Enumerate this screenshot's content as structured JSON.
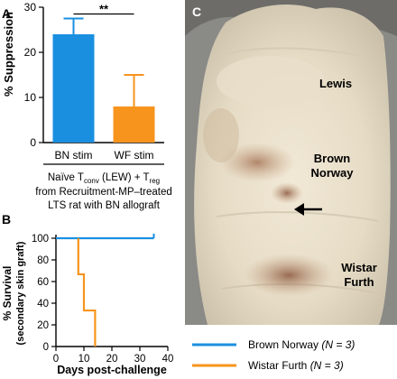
{
  "panels": {
    "a_letter": "A",
    "b_letter": "B",
    "c_letter": "C"
  },
  "chart_data": [
    {
      "type": "bar",
      "panel": "A",
      "ylabel": "% Suppression",
      "ylim": [
        0,
        30
      ],
      "yticks": [
        0,
        10,
        20,
        30
      ],
      "categories": [
        "BN stim",
        "WF stim"
      ],
      "values": [
        24,
        8
      ],
      "error_upper": [
        27.5,
        15
      ],
      "colors": [
        "#1a8fe0",
        "#f7941d"
      ],
      "significance": "**",
      "group_label": {
        "line1_pre": "Naïve T",
        "line1_sub1": "conv",
        "line1_mid": " (LEW) + T",
        "line1_sub2": "reg",
        "line2": "from Recruitment-MP–treated",
        "line3": "LTS rat with BN allograft"
      }
    },
    {
      "type": "line",
      "panel": "B",
      "ylabel": "% Survival",
      "ylabel2": "(secondary skin graft)",
      "xlabel": "Days post-challenge",
      "xlim": [
        0,
        40
      ],
      "ylim": [
        0,
        100
      ],
      "xticks": [
        0,
        10,
        20,
        30,
        40
      ],
      "yticks": [
        0,
        20,
        40,
        60,
        80,
        100
      ],
      "series": [
        {
          "name": "Brown Norway",
          "n_label": "(N = 3)",
          "color": "#1a8fe0",
          "x": [
            0,
            35
          ],
          "y": [
            100,
            100
          ],
          "step": true,
          "censor_tick_x": 35
        },
        {
          "name": "Wistar Furth",
          "n_label": "(N = 3)",
          "color": "#f7941d",
          "x": [
            8,
            8,
            10,
            10,
            14,
            14
          ],
          "y": [
            100,
            66.7,
            66.7,
            33.3,
            33.3,
            0
          ],
          "step": true
        }
      ]
    }
  ],
  "photo": {
    "labels": [
      "Lewis",
      "Brown Norway",
      "Wistar Furth"
    ],
    "label_lines": [
      [
        "Lewis"
      ],
      [
        "Brown",
        "Norway"
      ],
      [
        "Wistar",
        "Furth"
      ]
    ]
  }
}
